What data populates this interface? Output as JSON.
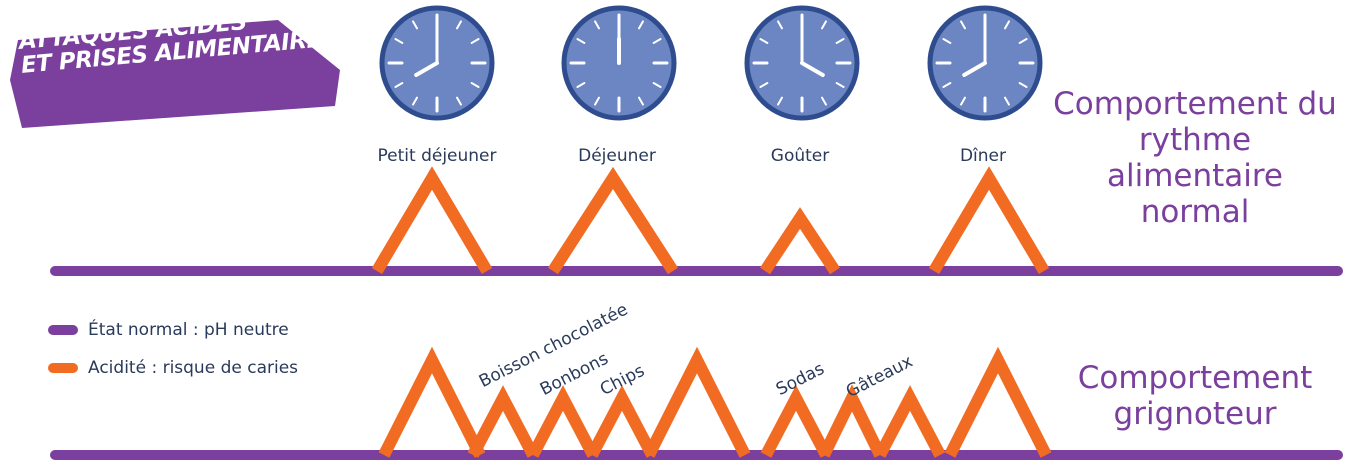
{
  "banner": {
    "line1": "ATTAQUES ACIDES",
    "line2": "ET PRISES ALIMENTAIRES",
    "color": "#7b3f9e"
  },
  "meals": [
    "Petit déjeuner",
    "Déjeuner",
    "Goûter",
    "Dîner"
  ],
  "clocks": [
    {
      "label": "Petit déjeuner",
      "time": "8:00"
    },
    {
      "label": "Déjeuner",
      "time": "12:00"
    },
    {
      "label": "Goûter",
      "time": "16:00"
    },
    {
      "label": "Dîner",
      "time": "20:00"
    }
  ],
  "behaviors": {
    "normal": "Comportement du rythme alimentaire normal",
    "snacker": "Comportement grignoteur"
  },
  "legend": [
    {
      "label": "État normal : pH neutre",
      "color": "#7b3f9e"
    },
    {
      "label": "Acidité : risque de caries",
      "color": "#f26b22"
    }
  ],
  "snacks": [
    "Boisson chocolatée",
    "Bonbons",
    "Chips",
    "Sodas",
    "Gâteaux"
  ],
  "colors": {
    "neutral": "#7b3f9e",
    "acid": "#f26b22",
    "clock_face": "#6b86c2",
    "clock_border": "#2f4d8e",
    "text": "#2a3a5a"
  }
}
